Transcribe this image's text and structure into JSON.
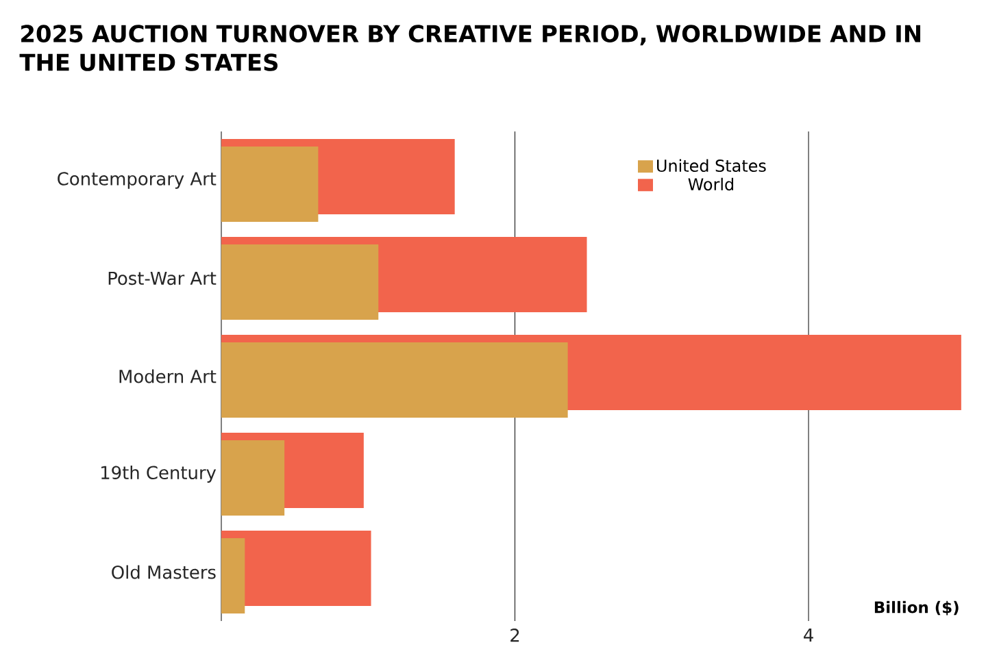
{
  "chart_data": {
    "type": "bar",
    "orientation": "horizontal",
    "title": "2025 AUCTION TURNOVER BY CREATIVE PERIOD, WORLDWIDE AND IN THE UNITED STATES",
    "xlabel": "Billion ($)",
    "categories": [
      "Contemporary Art",
      "Post-War Art",
      "Modern Art",
      "19th Century",
      "Old Masters"
    ],
    "series": [
      {
        "name": "United States",
        "color": "#d8a34c",
        "values": [
          0.66,
          1.07,
          2.36,
          0.43,
          0.16
        ]
      },
      {
        "name": "World",
        "color": "#f2644c",
        "values": [
          1.59,
          2.49,
          5.04,
          0.97,
          1.02
        ]
      }
    ],
    "xlim": [
      0,
      5.05
    ],
    "xticks": [
      2,
      4
    ],
    "grid": "x",
    "legend": "top right"
  }
}
